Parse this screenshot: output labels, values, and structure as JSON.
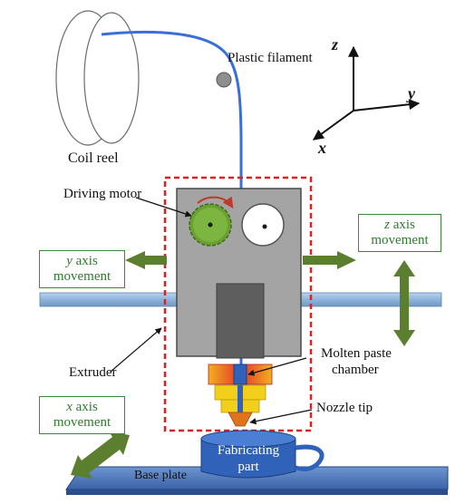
{
  "diagram": {
    "labels": {
      "coil_reel": "Coil reel",
      "plastic_filament": "Plastic filament",
      "driving_motor": "Driving motor",
      "extruder": "Extruder",
      "molten_paste_line1": "Molten paste",
      "molten_paste_line2": "chamber",
      "nozzle_tip": "Nozzle tip",
      "base_plate": "Base plate",
      "fabricating_line1": "Fabricating",
      "fabricating_line2": "part"
    },
    "movement_boxes": {
      "y": {
        "axis": "y",
        "text": "axis",
        "line2": "movement"
      },
      "z": {
        "axis": "z",
        "text": "axis",
        "line2": "movement"
      },
      "x": {
        "axis": "x",
        "text": "axis",
        "line2": "movement"
      }
    },
    "axes": {
      "z": "z",
      "y": "y",
      "x": "x"
    },
    "colors": {
      "filament": "#3a6fd8",
      "arrow_green": "#5b7f2e",
      "extruder_body": "#a3a3a3",
      "dashed_outline": "#e02020",
      "heater": "#e8352a",
      "nozzle_yellow": "#f2cf1a",
      "nozzle_tip": "#e0741a",
      "part_blue": "#2f62b8",
      "gear_green": "#6aa033",
      "rail": "#8fb4d9"
    }
  }
}
